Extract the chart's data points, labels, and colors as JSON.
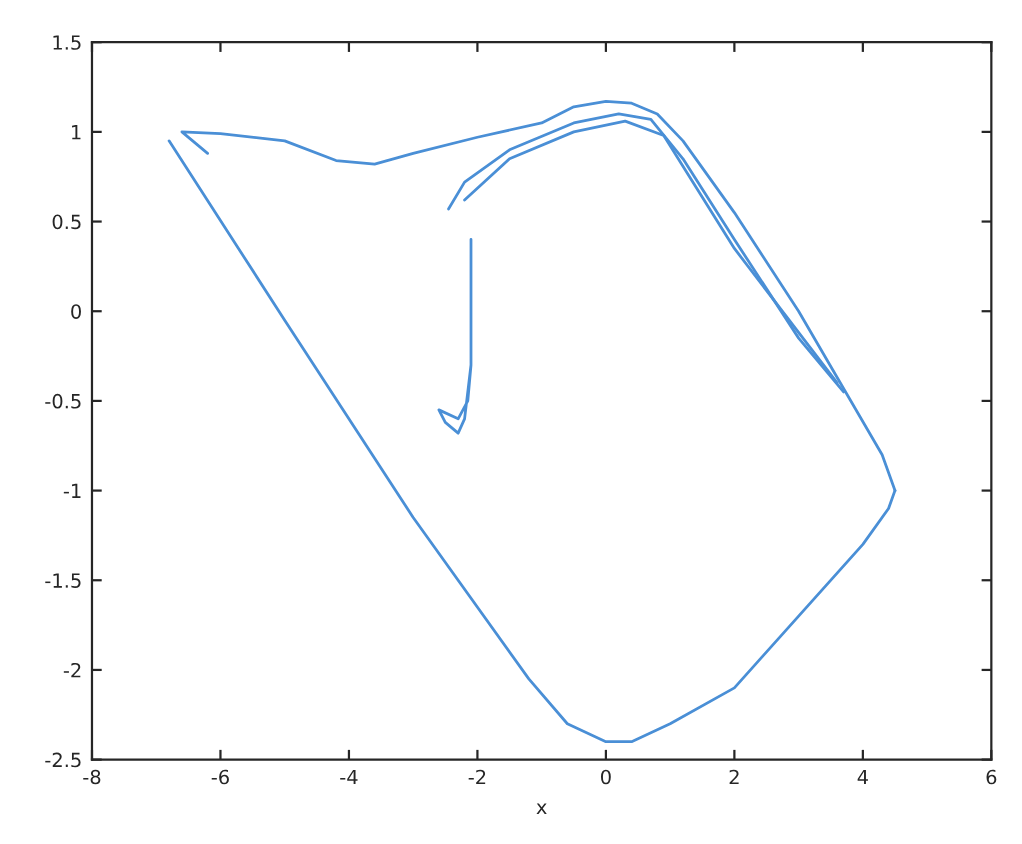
{
  "chart_data": {
    "type": "line",
    "xlabel": "x",
    "xlim": [
      -8,
      6
    ],
    "ylim": [
      -2.5,
      1.5
    ],
    "xticks": [
      -8,
      -6,
      -4,
      -2,
      0,
      2,
      4,
      6
    ],
    "yticks": [
      -2.5,
      -2,
      -1.5,
      -1,
      -0.5,
      0,
      0.5,
      1,
      1.5
    ],
    "grid": false,
    "marker": "none",
    "line_style": "solid",
    "series": [
      {
        "color": "#4a8fd6",
        "x": [
          -6.8,
          -5,
          -3,
          -1.2,
          -0.6,
          0,
          0.4,
          1,
          2,
          3,
          4,
          4.4,
          4.5
        ],
        "values": [
          0.95,
          -0.05,
          -1.15,
          -2.05,
          -2.3,
          -2.4,
          -2.4,
          -2.3,
          -2.1,
          -1.7,
          -1.3,
          -1.1,
          -1.0
        ]
      },
      {
        "color": "#4a8fd6",
        "x": [
          4.5,
          4.3,
          3,
          2,
          1.2,
          0.8,
          0.4,
          0,
          -0.5,
          -1,
          -2,
          -3,
          -3.6,
          -4.2,
          -5,
          -6,
          -6.6,
          -6.2
        ],
        "values": [
          -1.0,
          -0.8,
          0.0,
          0.55,
          0.95,
          1.1,
          1.16,
          1.17,
          1.14,
          1.05,
          0.97,
          0.88,
          0.82,
          0.84,
          0.95,
          0.99,
          1.0,
          0.88
        ]
      },
      {
        "color": "#4a8fd6",
        "x": [
          -2.45,
          -2.2,
          -1.5,
          -0.5,
          0.2,
          0.7,
          1.2,
          2,
          3,
          3.7
        ],
        "values": [
          0.57,
          0.72,
          0.9,
          1.05,
          1.1,
          1.07,
          0.85,
          0.4,
          -0.15,
          -0.45
        ]
      },
      {
        "color": "#4a8fd6",
        "x": [
          -2.2,
          -1.5,
          -0.5,
          0.3,
          0.9,
          2,
          3.6
        ],
        "values": [
          0.62,
          0.85,
          1.0,
          1.06,
          0.98,
          0.35,
          -0.4
        ]
      },
      {
        "color": "#4a8fd6",
        "x": [
          -2.1,
          -2.1,
          -2.15,
          -2.3,
          -2.6,
          -2.5,
          -2.3,
          -2.2,
          -2.1
        ],
        "values": [
          0.4,
          -0.3,
          -0.5,
          -0.6,
          -0.55,
          -0.62,
          -0.68,
          -0.6,
          -0.3
        ]
      }
    ]
  }
}
